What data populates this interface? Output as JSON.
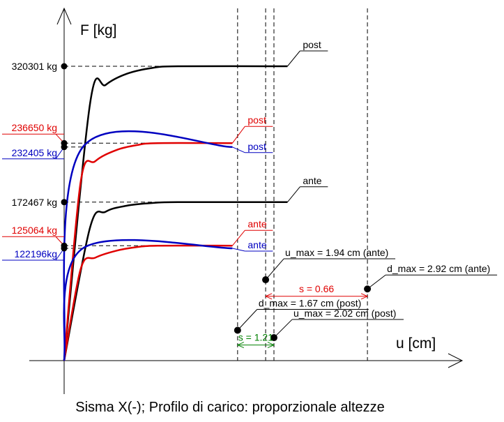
{
  "chart_data": {
    "type": "line",
    "title": "Sisma X(-); Profilo di carico: proporzionale altezze",
    "xlabel": "u [cm]",
    "ylabel": "F [kg]",
    "xlim": [
      0,
      4.85
    ],
    "ylim": [
      0,
      355000
    ],
    "legend": "none",
    "grid": false,
    "colors": {
      "black": "#000000",
      "red": "#e00000",
      "blue": "#0000c0",
      "green": "#008000"
    },
    "series": [
      {
        "name": "post",
        "color": "#000000",
        "end_label": "post",
        "points": [
          [
            0,
            0
          ],
          [
            0.25,
            280000
          ],
          [
            0.4,
            300000
          ],
          [
            0.6,
            312000
          ],
          [
            0.85,
            318500
          ],
          [
            1.1,
            320301
          ],
          [
            2.15,
            320301
          ]
        ]
      },
      {
        "name": "post",
        "color": "#e00000",
        "end_label": "post",
        "points": [
          [
            0,
            0
          ],
          [
            0.16,
            195000
          ],
          [
            0.3,
            217000
          ],
          [
            0.5,
            229000
          ],
          [
            0.7,
            234500
          ],
          [
            0.9,
            236650
          ],
          [
            1.62,
            236650
          ]
        ]
      },
      {
        "name": "post",
        "color": "#0000c0",
        "end_label": "post",
        "points": [
          [
            0,
            0
          ],
          [
            0.18,
            232405
          ],
          [
            1.62,
            232405
          ]
        ]
      },
      {
        "name": "ante",
        "color": "#000000",
        "end_label": "ante",
        "points": [
          [
            0,
            0
          ],
          [
            0.25,
            145000
          ],
          [
            0.4,
            162000
          ],
          [
            0.6,
            168500
          ],
          [
            0.85,
            171500
          ],
          [
            1.1,
            172467
          ],
          [
            2.15,
            172467
          ]
        ]
      },
      {
        "name": "ante",
        "color": "#e00000",
        "end_label": "ante",
        "points": [
          [
            0,
            0
          ],
          [
            0.16,
            100000
          ],
          [
            0.3,
            112000
          ],
          [
            0.5,
            119500
          ],
          [
            0.7,
            123500
          ],
          [
            0.9,
            125064
          ],
          [
            1.62,
            125064
          ]
        ]
      },
      {
        "name": "ante",
        "color": "#0000c0",
        "end_label": "ante",
        "points": [
          [
            0,
            0
          ],
          [
            0.18,
            122196
          ],
          [
            1.62,
            122196
          ]
        ]
      }
    ],
    "force_labels": [
      {
        "text": "320301 kg",
        "value": 320301,
        "color": "#000000",
        "underline": false,
        "refline_to": 2.15
      },
      {
        "text": "236650 kg",
        "value": 236650,
        "color": "#e00000",
        "underline": true,
        "refline_to": 0.9
      },
      {
        "text": "232405 kg",
        "value": 232405,
        "color": "#0000c0",
        "underline": true,
        "refline_to": 0.18
      },
      {
        "text": "172467 kg",
        "value": 172467,
        "color": "#000000",
        "underline": false,
        "refline_to": 2.15
      },
      {
        "text": "125064 kg",
        "value": 125064,
        "color": "#e00000",
        "underline": true,
        "refline_to": 0.9
      },
      {
        "text": "122196kg",
        "value": 122196,
        "color": "#0000c0",
        "underline": true,
        "refline_to": 0.18
      }
    ],
    "vertical_lines": [
      1.67,
      1.94,
      2.02,
      2.92
    ],
    "points": [
      {
        "name": "u_max ante",
        "label": "u_max = 1.94 cm (ante)",
        "x": 1.94,
        "y": 88000
      },
      {
        "name": "d_max ante",
        "label": "d_max = 2.92 cm (ante)",
        "x": 2.92,
        "y": 78000
      },
      {
        "name": "d_max post",
        "label": "d_max = 1.67 cm (post)",
        "x": 1.67,
        "y": 33000
      },
      {
        "name": "u_max post",
        "label": "u_max = 2.02 cm (post)",
        "x": 2.02,
        "y": 25000
      }
    ],
    "dimensions": [
      {
        "label": "s = 0.66",
        "from": 1.94,
        "to": 2.92,
        "y": 70000,
        "color": "#e00000"
      },
      {
        "label": "s = 1.21",
        "from": 1.67,
        "to": 2.02,
        "y": 17000,
        "color": "#008000"
      }
    ]
  }
}
